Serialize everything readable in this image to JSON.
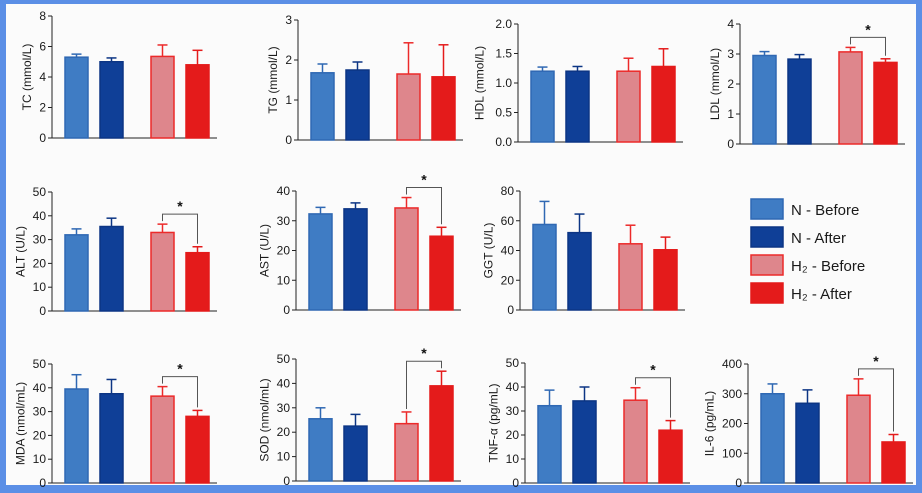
{
  "figure": {
    "frame_color": "#5b8fe6",
    "background": "#fbfbfb"
  },
  "groups": [
    {
      "name": "N - Before",
      "fill": "#3f7cc4",
      "stroke": "#2f68b3"
    },
    {
      "name": "N - After",
      "fill": "#0f3f97",
      "stroke": "#0c3584"
    },
    {
      "name": "H₂ - Before",
      "fill": "#de868c",
      "stroke": "#ec2a2a"
    },
    {
      "name": "H₂ - After",
      "fill": "#e41b1b",
      "stroke": "#e41b1b"
    }
  ],
  "legend": {
    "items": [
      "N - Before",
      "N - After",
      "H₂ - Before",
      "H₂ - After"
    ],
    "placement": "middle-right"
  },
  "chart_data": [
    {
      "type": "bar",
      "id": "tc",
      "ylabel": "TC (mmol/L)",
      "ylim": [
        0,
        8
      ],
      "ticks": [
        "0",
        "2",
        "4",
        "6",
        "8"
      ],
      "categories": [
        "N - Before",
        "N - After",
        "H₂ - Before",
        "H₂ - After"
      ],
      "values": [
        5.3,
        5.0,
        5.35,
        4.8
      ],
      "errors": [
        0.2,
        0.25,
        0.75,
        0.95
      ],
      "significance": null
    },
    {
      "type": "bar",
      "id": "tg",
      "ylabel": "TG (mmol/L)",
      "ylim": [
        0,
        3
      ],
      "ticks": [
        "0",
        "1",
        "2",
        "3"
      ],
      "categories": [
        "N - Before",
        "N - After",
        "H₂ - Before",
        "H₂ - After"
      ],
      "values": [
        1.68,
        1.75,
        1.65,
        1.58
      ],
      "errors": [
        0.22,
        0.2,
        0.78,
        0.8
      ],
      "significance": null
    },
    {
      "type": "bar",
      "id": "hdl",
      "ylabel": "HDL (mmol/L)",
      "ylim": [
        0,
        2
      ],
      "ticks": [
        "0.0",
        "0.5",
        "1.0",
        "1.5",
        "2.0"
      ],
      "categories": [
        "N - Before",
        "N - After",
        "H₂ - Before",
        "H₂ - After"
      ],
      "values": [
        1.2,
        1.2,
        1.2,
        1.28
      ],
      "errors": [
        0.07,
        0.08,
        0.22,
        0.3
      ],
      "significance": null
    },
    {
      "type": "bar",
      "id": "ldl",
      "ylabel": "LDL (mmol/L)",
      "ylim": [
        0,
        4
      ],
      "ticks": [
        "0",
        "1",
        "2",
        "3",
        "4"
      ],
      "categories": [
        "N - Before",
        "N - After",
        "H₂ - Before",
        "H₂ - After"
      ],
      "values": [
        2.95,
        2.83,
        3.07,
        2.72
      ],
      "errors": [
        0.13,
        0.15,
        0.15,
        0.12
      ],
      "significance": {
        "between": [
          2,
          3
        ],
        "label": "*"
      }
    },
    {
      "type": "bar",
      "id": "alt",
      "ylabel": "ALT (U/L)",
      "ylim": [
        0,
        50
      ],
      "ticks": [
        "0",
        "10",
        "20",
        "30",
        "40",
        "50"
      ],
      "categories": [
        "N - Before",
        "N - After",
        "H₂ - Before",
        "H₂ - After"
      ],
      "values": [
        32,
        35.5,
        33,
        24.5
      ],
      "errors": [
        2.5,
        3.5,
        3.5,
        2.5
      ],
      "significance": {
        "between": [
          2,
          3
        ],
        "label": "*"
      }
    },
    {
      "type": "bar",
      "id": "ast",
      "ylabel": "AST (U/L)",
      "ylim": [
        0,
        40
      ],
      "ticks": [
        "0",
        "10",
        "20",
        "30",
        "40"
      ],
      "categories": [
        "N - Before",
        "N - After",
        "H₂ - Before",
        "H₂ - After"
      ],
      "values": [
        32.3,
        34,
        34.3,
        24.8
      ],
      "errors": [
        2.2,
        2.0,
        3.5,
        3.0
      ],
      "significance": {
        "between": [
          2,
          3
        ],
        "label": "*"
      }
    },
    {
      "type": "bar",
      "id": "ggt",
      "ylabel": "GGT (U/L)",
      "ylim": [
        0,
        80
      ],
      "ticks": [
        "0",
        "20",
        "40",
        "60",
        "80"
      ],
      "categories": [
        "N - Before",
        "N - After",
        "H₂ - Before",
        "H₂ - After"
      ],
      "values": [
        57.5,
        52,
        44.5,
        40.5
      ],
      "errors": [
        15.5,
        12.5,
        12.5,
        8.5
      ],
      "significance": null
    },
    {
      "type": "bar",
      "id": "mda",
      "ylabel": "MDA (nmol/mL)",
      "ylim": [
        0,
        50
      ],
      "ticks": [
        "0",
        "10",
        "20",
        "30",
        "40",
        "50"
      ],
      "categories": [
        "N - Before",
        "N - After",
        "H₂ - Before",
        "H₂ - After"
      ],
      "values": [
        39.5,
        37.5,
        36.5,
        28
      ],
      "errors": [
        6,
        6,
        4,
        2.5
      ],
      "significance": {
        "between": [
          2,
          3
        ],
        "label": "*"
      }
    },
    {
      "type": "bar",
      "id": "sod",
      "ylabel": "SOD (nmol/mL)",
      "ylim": [
        0,
        50
      ],
      "ticks": [
        "0",
        "10",
        "20",
        "30",
        "40",
        "50"
      ],
      "categories": [
        "N - Before",
        "N - After",
        "H₂ - Before",
        "H₂ - After"
      ],
      "values": [
        25.5,
        22.5,
        23.5,
        39
      ],
      "errors": [
        4.5,
        4.8,
        4.8,
        6
      ],
      "significance": {
        "between": [
          2,
          3
        ],
        "label": "*"
      }
    },
    {
      "type": "bar",
      "id": "tnf",
      "ylabel": "TNF-α (pg/mL)",
      "ylim": [
        0,
        50
      ],
      "ticks": [
        "0",
        "10",
        "20",
        "30",
        "40",
        "50"
      ],
      "categories": [
        "N - Before",
        "N - After",
        "H₂ - Before",
        "H₂ - After"
      ],
      "values": [
        32.2,
        34.2,
        34.5,
        22
      ],
      "errors": [
        6.5,
        5.8,
        5.2,
        4
      ],
      "significance": {
        "between": [
          2,
          3
        ],
        "label": "*"
      }
    },
    {
      "type": "bar",
      "id": "il6",
      "ylabel": "IL-6 (pg/mL)",
      "ylim": [
        0,
        400
      ],
      "ticks": [
        "0",
        "100",
        "200",
        "300",
        "400"
      ],
      "categories": [
        "N - Before",
        "N - After",
        "H₂ - Before",
        "H₂ - After"
      ],
      "values": [
        300,
        268,
        295,
        138
      ],
      "errors": [
        33,
        45,
        55,
        25
      ],
      "significance": {
        "between": [
          2,
          3
        ],
        "label": "*"
      }
    }
  ]
}
